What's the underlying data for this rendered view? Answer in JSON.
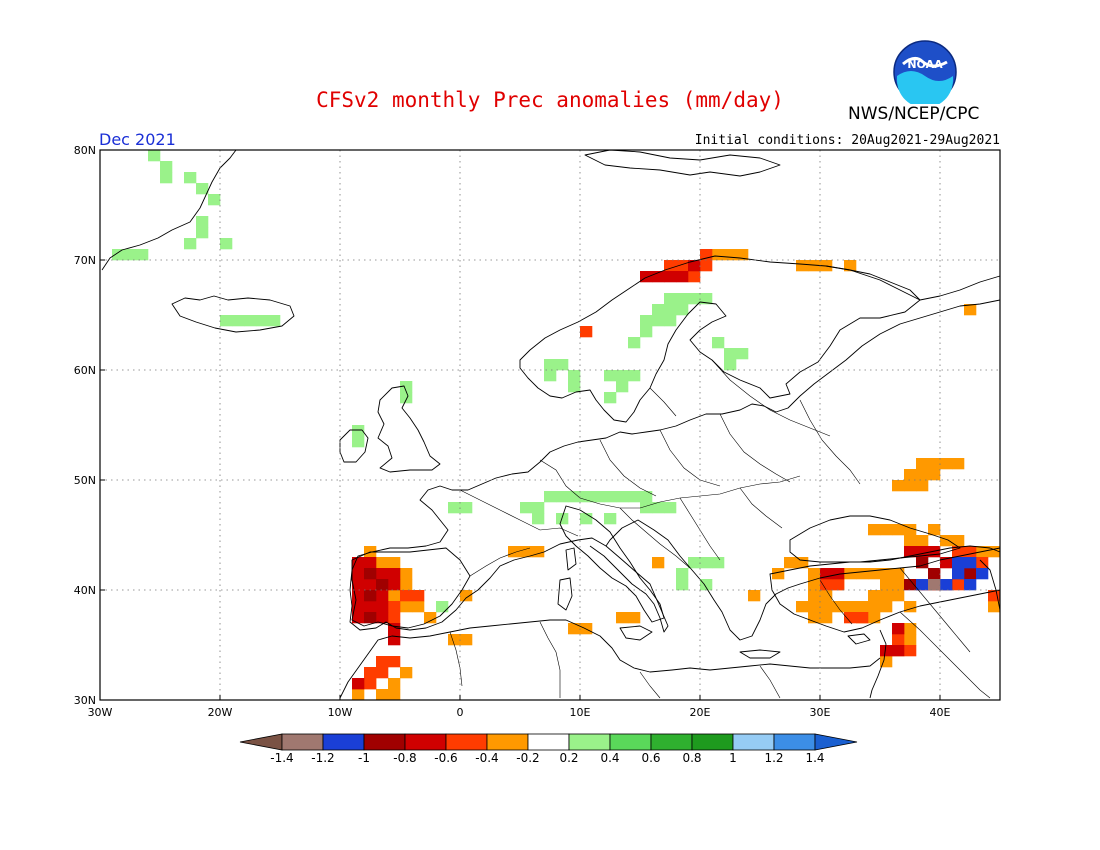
{
  "header": {
    "title": "CFSv2 monthly Prec anomalies (mm/day)",
    "agency": "NWS/NCEP/CPC",
    "logo_text": "NOAA",
    "period": "Dec 2021",
    "initial_conditions": "Initial conditions: 20Aug2021-29Aug2021"
  },
  "map": {
    "lon_range": [
      -30,
      45
    ],
    "lat_range": [
      30,
      80
    ],
    "lat_labels": [
      "80N",
      "70N",
      "60N",
      "50N",
      "40N",
      "30N"
    ],
    "lat_values": [
      80,
      70,
      60,
      50,
      40,
      30
    ],
    "lon_labels": [
      "30W",
      "20W",
      "10W",
      "0",
      "10E",
      "20E",
      "30E",
      "40E"
    ],
    "lon_values": [
      -30,
      -20,
      -10,
      0,
      10,
      20,
      30,
      40
    ],
    "grid": "dotted"
  },
  "colorbar": {
    "labels": [
      "-1.4",
      "-1.2",
      "-1",
      "-0.8",
      "-0.6",
      "-0.4",
      "-0.2",
      "0.2",
      "0.4",
      "0.6",
      "0.8",
      "1",
      "1.2",
      "1.4"
    ],
    "colors": [
      "#7a5244",
      "#a07870",
      "#1a3fd6",
      "#a00000",
      "#d00000",
      "#ff3c00",
      "#ff9900",
      "#ffffff",
      "#9af28a",
      "#5ad85a",
      "#2fb02f",
      "#1e9a1e",
      "#96ccf5",
      "#3c8ee6",
      "#1a5fd0"
    ]
  },
  "anomalies": [
    {
      "level": "0.4",
      "color": "#9af28a",
      "cells": [
        [
          -26,
          79
        ],
        [
          -25,
          78
        ],
        [
          -25,
          77
        ],
        [
          -23,
          77
        ],
        [
          -22,
          76
        ],
        [
          -21,
          75
        ],
        [
          -22,
          73
        ],
        [
          -22,
          72
        ],
        [
          -20,
          71
        ],
        [
          -23,
          71
        ],
        [
          -27,
          70
        ],
        [
          -28,
          70
        ],
        [
          -29,
          70
        ],
        [
          -19,
          64
        ],
        [
          -18,
          64
        ],
        [
          -17,
          64
        ],
        [
          -16,
          64
        ],
        [
          -20,
          64
        ],
        [
          -5,
          58
        ],
        [
          -5,
          57
        ],
        [
          -9,
          54
        ],
        [
          -9,
          53
        ],
        [
          7,
          60
        ],
        [
          8,
          60
        ],
        [
          7,
          59
        ],
        [
          9,
          59
        ],
        [
          9,
          58
        ],
        [
          12,
          59
        ],
        [
          13,
          59
        ],
        [
          14,
          59
        ],
        [
          13,
          58
        ],
        [
          12,
          57
        ],
        [
          17,
          66
        ],
        [
          18,
          66
        ],
        [
          19,
          66
        ],
        [
          20,
          66
        ],
        [
          16,
          65
        ],
        [
          17,
          65
        ],
        [
          18,
          65
        ],
        [
          15,
          64
        ],
        [
          16,
          64
        ],
        [
          17,
          64
        ],
        [
          15,
          63
        ],
        [
          14,
          62
        ],
        [
          21,
          62
        ],
        [
          22,
          61
        ],
        [
          23,
          61
        ],
        [
          22,
          60
        ],
        [
          -1,
          47
        ],
        [
          0,
          47
        ],
        [
          5,
          47
        ],
        [
          6,
          47
        ],
        [
          7,
          48
        ],
        [
          8,
          48
        ],
        [
          9,
          48
        ],
        [
          10,
          48
        ],
        [
          11,
          48
        ],
        [
          12,
          48
        ],
        [
          13,
          48
        ],
        [
          14,
          48
        ],
        [
          15,
          48
        ],
        [
          6,
          46
        ],
        [
          8,
          46
        ],
        [
          10,
          46
        ],
        [
          12,
          46
        ],
        [
          15,
          47
        ],
        [
          16,
          47
        ],
        [
          17,
          47
        ],
        [
          18,
          41
        ],
        [
          19,
          42
        ],
        [
          20,
          42
        ],
        [
          21,
          42
        ],
        [
          18,
          40
        ],
        [
          20,
          40
        ],
        [
          -2,
          38
        ]
      ]
    },
    {
      "level": "-0.2",
      "color": "#ff9900",
      "cells": [
        [
          -8,
          43
        ],
        [
          -7,
          42
        ],
        [
          -6,
          42
        ],
        [
          -5,
          41
        ],
        [
          -5,
          40
        ],
        [
          -6,
          39
        ],
        [
          -5,
          38
        ],
        [
          -4,
          38
        ],
        [
          -3,
          37
        ],
        [
          -1,
          35
        ],
        [
          0,
          35
        ],
        [
          4,
          43
        ],
        [
          5,
          43
        ],
        [
          6,
          43
        ],
        [
          0,
          39
        ],
        [
          9,
          36
        ],
        [
          10,
          36
        ],
        [
          13,
          37
        ],
        [
          14,
          37
        ],
        [
          16,
          42
        ],
        [
          21,
          70
        ],
        [
          22,
          70
        ],
        [
          23,
          70
        ],
        [
          28,
          69
        ],
        [
          29,
          69
        ],
        [
          30,
          69
        ],
        [
          32,
          69
        ],
        [
          42,
          65
        ],
        [
          38,
          51
        ],
        [
          39,
          51
        ],
        [
          40,
          51
        ],
        [
          41,
          51
        ],
        [
          37,
          50
        ],
        [
          38,
          50
        ],
        [
          39,
          50
        ],
        [
          36,
          49
        ],
        [
          37,
          49
        ],
        [
          38,
          49
        ],
        [
          34,
          45
        ],
        [
          35,
          45
        ],
        [
          36,
          45
        ],
        [
          37,
          45
        ],
        [
          38,
          44
        ],
        [
          39,
          45
        ],
        [
          37,
          44
        ],
        [
          40,
          44
        ],
        [
          41,
          44
        ],
        [
          43,
          43
        ],
        [
          44,
          43
        ],
        [
          27,
          42
        ],
        [
          28,
          42
        ],
        [
          29,
          41
        ],
        [
          30,
          41
        ],
        [
          31,
          40
        ],
        [
          32,
          41
        ],
        [
          33,
          41
        ],
        [
          34,
          41
        ],
        [
          35,
          41
        ],
        [
          36,
          41
        ],
        [
          29,
          40
        ],
        [
          35,
          40
        ],
        [
          36,
          40
        ],
        [
          29,
          39
        ],
        [
          30,
          39
        ],
        [
          34,
          39
        ],
        [
          35,
          39
        ],
        [
          36,
          39
        ],
        [
          28,
          38
        ],
        [
          29,
          38
        ],
        [
          30,
          38
        ],
        [
          31,
          38
        ],
        [
          32,
          38
        ],
        [
          33,
          38
        ],
        [
          34,
          38
        ],
        [
          35,
          38
        ],
        [
          37,
          38
        ],
        [
          29,
          37
        ],
        [
          30,
          37
        ],
        [
          33,
          37
        ],
        [
          34,
          37
        ],
        [
          37,
          36
        ],
        [
          36,
          35
        ],
        [
          37,
          35
        ],
        [
          36,
          34
        ],
        [
          35,
          33
        ],
        [
          24,
          39
        ],
        [
          26,
          41
        ],
        [
          44,
          38
        ],
        [
          -8,
          31
        ],
        [
          -6,
          31
        ],
        [
          -5,
          32
        ],
        [
          -7,
          30
        ],
        [
          -6,
          30
        ],
        [
          -9,
          30
        ]
      ]
    },
    {
      "level": "-0.4",
      "color": "#ff3c00",
      "cells": [
        [
          -5,
          39
        ],
        [
          -4,
          39
        ],
        [
          -6,
          38
        ],
        [
          -6,
          37
        ],
        [
          -7,
          33
        ],
        [
          -6,
          33
        ],
        [
          -8,
          32
        ],
        [
          -7,
          32
        ],
        [
          -8,
          31
        ],
        [
          -9,
          31
        ],
        [
          17,
          69
        ],
        [
          18,
          69
        ],
        [
          20,
          69
        ],
        [
          19,
          68
        ],
        [
          20,
          70
        ],
        [
          10,
          63
        ],
        [
          30,
          40
        ],
        [
          31,
          40
        ],
        [
          32,
          37
        ],
        [
          33,
          37
        ],
        [
          41,
          43
        ],
        [
          42,
          43
        ],
        [
          43,
          42
        ],
        [
          41,
          40
        ],
        [
          38,
          40
        ],
        [
          44,
          39
        ],
        [
          36,
          36
        ],
        [
          36,
          35
        ],
        [
          37,
          34
        ],
        [
          38,
          40
        ],
        [
          39,
          40
        ]
      ]
    },
    {
      "level": "-0.6",
      "color": "#d00000",
      "cells": [
        [
          -9,
          42
        ],
        [
          -8,
          42
        ],
        [
          -9,
          41
        ],
        [
          -8,
          41
        ],
        [
          -7,
          41
        ],
        [
          -6,
          41
        ],
        [
          -9,
          40
        ],
        [
          -8,
          40
        ],
        [
          -7,
          40
        ],
        [
          -6,
          40
        ],
        [
          -9,
          39
        ],
        [
          -8,
          39
        ],
        [
          -7,
          39
        ],
        [
          -9,
          38
        ],
        [
          -8,
          38
        ],
        [
          -7,
          38
        ],
        [
          -9,
          37
        ],
        [
          -7,
          37
        ],
        [
          -6,
          36
        ],
        [
          -6,
          35
        ],
        [
          -9,
          31
        ],
        [
          16,
          68
        ],
        [
          17,
          68
        ],
        [
          18,
          68
        ],
        [
          19,
          69
        ],
        [
          15,
          68
        ],
        [
          37,
          43
        ],
        [
          38,
          43
        ],
        [
          39,
          43
        ],
        [
          40,
          42
        ],
        [
          39,
          40
        ],
        [
          36,
          36
        ],
        [
          36,
          34
        ],
        [
          35,
          34
        ],
        [
          30,
          41
        ],
        [
          31,
          41
        ]
      ]
    },
    {
      "level": "-0.8",
      "color": "#a00000",
      "cells": [
        [
          -8,
          41
        ],
        [
          -7,
          40
        ],
        [
          -8,
          39
        ],
        [
          -8,
          37
        ],
        [
          38,
          42
        ],
        [
          39,
          41
        ],
        [
          42,
          41
        ],
        [
          37,
          40
        ],
        [
          40,
          40
        ],
        [
          39,
          41
        ]
      ]
    },
    {
      "level": "-1.2",
      "color": "#1a3fd6",
      "cells": [
        [
          41,
          42
        ],
        [
          42,
          42
        ],
        [
          41,
          41
        ],
        [
          43,
          41
        ],
        [
          38,
          40
        ],
        [
          40,
          40
        ],
        [
          42,
          40
        ]
      ]
    },
    {
      "level": "-1.4",
      "color": "#a07870",
      "cells": [
        [
          39,
          40
        ]
      ]
    }
  ]
}
